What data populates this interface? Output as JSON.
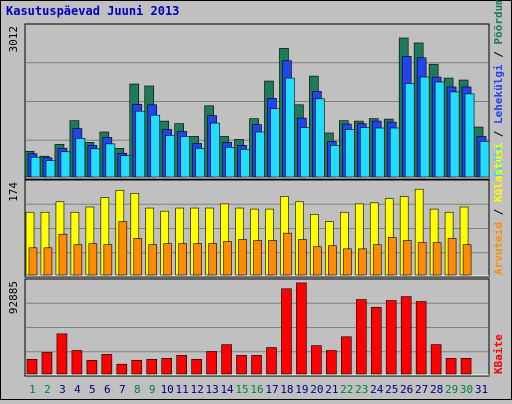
{
  "chart_data": {
    "type": "bar",
    "title": "Kasutuspäevad Juuni 2013",
    "categories": [
      "1",
      "2",
      "3",
      "4",
      "5",
      "6",
      "7",
      "8",
      "9",
      "10",
      "11",
      "12",
      "13",
      "14",
      "15",
      "16",
      "17",
      "18",
      "19",
      "20",
      "21",
      "22",
      "23",
      "24",
      "25",
      "26",
      "27",
      "28",
      "29",
      "30",
      "31"
    ],
    "weekend_days": [
      "1",
      "2",
      "8",
      "9",
      "15",
      "16",
      "22",
      "23",
      "29",
      "30"
    ],
    "colors": {
      "title": "#0000c0",
      "weekday_label": "#000080",
      "weekend_label": "#008040",
      "visits": "#1e7a5a",
      "pages": "#2244ee",
      "files": "#22ddff",
      "hosts": "#ffff00",
      "visitors": "#ff8c00",
      "kbytes": "#ff0000",
      "panel_bg": "#c0c0c0",
      "gridline": "#808080"
    },
    "panels": [
      {
        "name": "requests",
        "max_label": "3012",
        "ylim": [
          0,
          3012
        ],
        "series": [
          {
            "key": "visits",
            "values": [
              520,
              420,
              660,
              1140,
              700,
              910,
              580,
              1880,
              1840,
              1130,
              1080,
              820,
              1440,
              820,
              760,
              1180,
              1940,
              2600,
              1460,
              2040,
              890,
              1140,
              1130,
              1180,
              1170,
              2810,
              2710,
              2280,
              2000,
              1960,
              1010
            ]
          },
          {
            "key": "pages",
            "values": [
              470,
              390,
              580,
              980,
              640,
              800,
              480,
              1470,
              1460,
              960,
              920,
              680,
              1240,
              700,
              640,
              1060,
              1590,
              2350,
              1190,
              1730,
              720,
              1070,
              1080,
              1130,
              1110,
              2440,
              2410,
              2020,
              1820,
              1820,
              820
            ]
          },
          {
            "key": "files",
            "values": [
              400,
              330,
              510,
              780,
              570,
              670,
              430,
              1330,
              1250,
              840,
              820,
              580,
              1090,
              600,
              560,
              910,
              1380,
              2000,
              1000,
              1580,
              640,
              960,
              1000,
              990,
              990,
              1890,
              2020,
              1920,
              1720,
              1680,
              720
            ]
          }
        ],
        "right_labels": [
          {
            "key": "files",
            "text": "Faile"
          },
          {
            "key": "pages",
            "text": "Lehekülgi"
          },
          {
            "key": "visits",
            "text": "Pöördumisi"
          }
        ]
      },
      {
        "name": "visits",
        "max_label": "174",
        "ylim": [
          0,
          174
        ],
        "series": [
          {
            "key": "hosts",
            "values": [
              120,
              120,
              140,
              120,
              130,
              148,
              162,
              156,
              128,
              122,
              128,
              128,
              128,
              136,
              128,
              126,
              126,
              150,
              140,
              116,
              102,
              120,
              136,
              138,
              146,
              150,
              164,
              126,
              120,
              130,
              0
            ]
          },
          {
            "key": "visitors",
            "values": [
              52,
              52,
              78,
              58,
              60,
              58,
              102,
              70,
              58,
              60,
              60,
              60,
              60,
              64,
              68,
              66,
              66,
              80,
              68,
              54,
              56,
              50,
              50,
              58,
              72,
              66,
              62,
              62,
              70,
              58,
              0
            ]
          }
        ],
        "right_labels": [
          {
            "key": "visitors",
            "text": "Arvuteid"
          },
          {
            "key": "hosts",
            "text": "Külastusi"
          }
        ]
      },
      {
        "name": "kbytes",
        "max_label": "92885",
        "ylim": [
          0,
          92885
        ],
        "series": [
          {
            "key": "kbytes",
            "values": [
              15000,
              22000,
              41000,
              24000,
              14000,
              20000,
              10000,
              14000,
              15000,
              16000,
              19000,
              15000,
              23000,
              30000,
              19000,
              19000,
              27000,
              87000,
              93000,
              29000,
              24000,
              38000,
              76000,
              68000,
              75000,
              79000,
              74000,
              30000,
              16000,
              16000,
              0
            ]
          }
        ],
        "right_labels": [
          {
            "key": "kbytes",
            "text": "KBaite"
          }
        ]
      }
    ]
  }
}
